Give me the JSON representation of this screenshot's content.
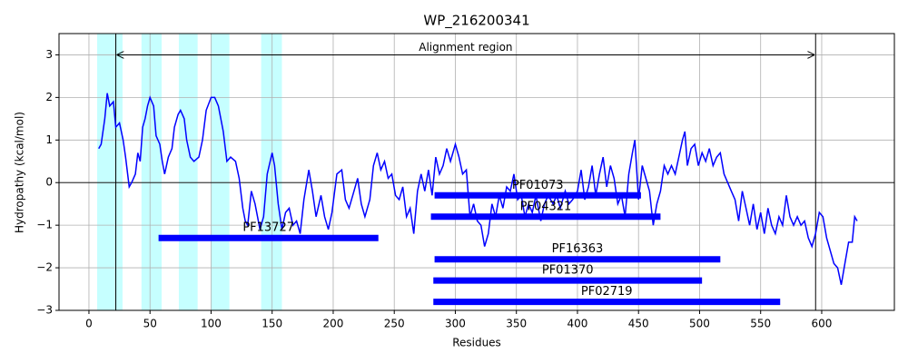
{
  "chart_data": {
    "type": "line",
    "title": "WP_216200341",
    "xlabel": "Residues",
    "ylabel": "Hydropathy (kcal/mol)",
    "xlim": [
      -24.5,
      659.5
    ],
    "ylim": [
      -3,
      3.5
    ],
    "xticks": [
      0,
      50,
      100,
      150,
      200,
      250,
      300,
      350,
      400,
      450,
      500,
      550,
      600
    ],
    "yticks": [
      {
        "value": -3,
        "label": "−3"
      },
      {
        "value": -2,
        "label": "−2"
      },
      {
        "value": -1,
        "label": "−1"
      },
      0,
      1,
      2,
      3
    ],
    "grid": true,
    "color": "#0000ff",
    "hline": 0,
    "x": [
      8,
      10,
      13,
      15,
      17,
      20,
      22,
      25,
      28,
      30,
      33,
      35,
      38,
      40,
      42,
      44,
      46,
      48,
      50,
      53,
      55,
      58,
      60,
      62,
      65,
      68,
      70,
      73,
      75,
      78,
      80,
      83,
      86,
      90,
      93,
      96,
      100,
      103,
      106,
      110,
      113,
      116,
      120,
      123,
      126,
      128,
      130,
      133,
      136,
      140,
      143,
      146,
      150,
      152,
      155,
      158,
      161,
      164,
      167,
      170,
      173,
      176,
      180,
      183,
      186,
      190,
      193,
      196,
      199,
      203,
      207,
      210,
      213,
      216,
      220,
      223,
      226,
      230,
      233,
      236,
      239,
      242,
      245,
      248,
      251,
      254,
      257,
      260,
      263,
      266,
      269,
      272,
      275,
      278,
      281,
      284,
      287,
      290,
      293,
      296,
      300,
      303,
      306,
      309,
      312,
      315,
      318,
      321,
      324,
      327,
      330,
      333,
      336,
      339,
      342,
      345,
      348,
      351,
      354,
      357,
      360,
      363,
      366,
      370,
      373,
      376,
      380,
      383,
      386,
      390,
      393,
      396,
      400,
      403,
      406,
      409,
      412,
      415,
      418,
      421,
      424,
      427,
      430,
      433,
      436,
      439,
      442,
      445,
      447,
      450,
      453,
      456,
      459,
      462,
      465,
      468,
      471,
      474,
      477,
      480,
      483,
      486,
      488,
      490,
      493,
      496,
      499,
      502,
      505,
      508,
      511,
      514,
      517,
      520,
      523,
      526,
      529,
      532,
      535,
      538,
      541,
      544,
      547,
      550,
      553,
      556,
      559,
      562,
      565,
      568,
      571,
      574,
      577,
      580,
      583,
      586,
      589,
      592,
      595,
      598,
      601,
      604,
      607,
      610,
      613,
      616,
      619,
      622,
      625,
      627,
      629
    ],
    "values": [
      0.8,
      0.9,
      1.5,
      2.1,
      1.8,
      1.9,
      1.3,
      1.4,
      1.0,
      0.6,
      -0.1,
      0.0,
      0.2,
      0.7,
      0.5,
      1.3,
      1.5,
      1.8,
      2.0,
      1.8,
      1.1,
      0.9,
      0.5,
      0.2,
      0.6,
      0.8,
      1.3,
      1.6,
      1.7,
      1.5,
      1.0,
      0.6,
      0.5,
      0.6,
      1.0,
      1.7,
      2.0,
      2.0,
      1.8,
      1.2,
      0.5,
      0.6,
      0.5,
      0.1,
      -0.6,
      -0.9,
      -1.0,
      -0.2,
      -0.5,
      -1.1,
      -0.8,
      0.2,
      0.7,
      0.4,
      -0.5,
      -1.1,
      -0.7,
      -0.6,
      -1.0,
      -0.9,
      -1.2,
      -0.4,
      0.3,
      -0.2,
      -0.8,
      -0.3,
      -0.8,
      -1.1,
      -0.7,
      0.2,
      0.3,
      -0.4,
      -0.6,
      -0.3,
      0.1,
      -0.5,
      -0.8,
      -0.4,
      0.4,
      0.7,
      0.3,
      0.5,
      0.1,
      0.2,
      -0.3,
      -0.4,
      -0.1,
      -0.8,
      -0.6,
      -1.2,
      -0.2,
      0.2,
      -0.2,
      0.3,
      -0.3,
      0.6,
      0.2,
      0.4,
      0.8,
      0.5,
      0.9,
      0.6,
      0.2,
      0.3,
      -0.8,
      -0.5,
      -0.9,
      -1.0,
      -1.5,
      -1.2,
      -0.5,
      -0.8,
      -0.3,
      -0.6,
      -0.1,
      -0.2,
      0.2,
      -0.4,
      -0.3,
      -0.8,
      -0.5,
      -0.7,
      -0.3,
      -0.9,
      -0.5,
      -0.3,
      -0.5,
      -0.3,
      -0.6,
      -0.2,
      -0.5,
      -0.4,
      -0.2,
      0.3,
      -0.4,
      -0.1,
      0.4,
      -0.3,
      0.2,
      0.6,
      -0.1,
      0.4,
      0.1,
      -0.5,
      -0.3,
      -0.8,
      0.2,
      0.7,
      1.0,
      -0.4,
      0.4,
      0.1,
      -0.2,
      -1.0,
      -0.5,
      -0.2,
      0.4,
      0.2,
      0.4,
      0.2,
      0.6,
      1.0,
      1.2,
      0.4,
      0.8,
      0.9,
      0.4,
      0.7,
      0.5,
      0.8,
      0.4,
      0.6,
      0.7,
      0.2,
      0.0,
      -0.2,
      -0.4,
      -0.9,
      -0.2,
      -0.6,
      -1.0,
      -0.5,
      -1.1,
      -0.7,
      -1.2,
      -0.6,
      -1.0,
      -1.2,
      -0.8,
      -1.0,
      -0.3,
      -0.8,
      -1.0,
      -0.8,
      -1.0,
      -0.9,
      -1.3,
      -1.5,
      -1.2,
      -0.7,
      -0.8,
      -1.3,
      -1.6,
      -1.9,
      -2.0,
      -2.4,
      -1.9,
      -1.4,
      -1.4,
      -0.8,
      -0.9
    ],
    "highlight_color": "#c6ffff",
    "highlights": [
      [
        6.7,
        27.5
      ],
      [
        43,
        59.5
      ],
      [
        73.6,
        89
      ],
      [
        100,
        115
      ],
      [
        141,
        158
      ]
    ],
    "alignment": {
      "label": "Alignment region",
      "start": 22,
      "end": 595,
      "y": 3
    },
    "domain_color": "#0000ff",
    "domains": [
      {
        "name": "PF13727",
        "start": 57,
        "end": 237,
        "y": -1.3
      },
      {
        "name": "PF01073",
        "start": 283,
        "end": 452,
        "y": -0.3
      },
      {
        "name": "PF04321",
        "start": 280,
        "end": 468,
        "y": -0.8
      },
      {
        "name": "PF16363",
        "start": 283,
        "end": 517,
        "y": -1.8
      },
      {
        "name": "PF01370",
        "start": 282,
        "end": 502,
        "y": -2.3
      },
      {
        "name": "PF02719",
        "start": 282,
        "end": 566,
        "y": -2.8
      }
    ]
  }
}
